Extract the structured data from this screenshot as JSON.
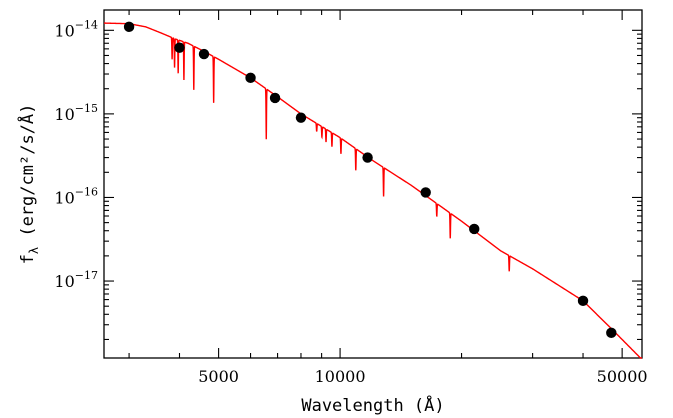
{
  "chart_data": {
    "type": "scatter",
    "title": "",
    "xlabel": "Wavelength (Å)",
    "ylabel": "f_λ (erg/cm²/s/Å)",
    "ylabel_parts": {
      "symbol": "f",
      "subscript": "λ",
      "units": " (erg/cm²/s/Å)"
    },
    "x_scale": "log",
    "y_scale": "log",
    "xlim": [
      2600,
      56000
    ],
    "ylim": [
      1.2e-18,
      1.75e-14
    ],
    "x_ticks": [
      {
        "value": 5000,
        "label": "5000"
      },
      {
        "value": 10000,
        "label": "10000"
      },
      {
        "value": 50000,
        "label": "50000"
      }
    ],
    "y_ticks": [
      {
        "value": 1e-14,
        "base": "10",
        "exp": "−14"
      },
      {
        "value": 1e-15,
        "base": "10",
        "exp": "−15"
      },
      {
        "value": 1e-16,
        "base": "10",
        "exp": "−16"
      },
      {
        "value": 1e-17,
        "base": "10",
        "exp": "−17"
      }
    ],
    "series": [
      {
        "kind": "photometry",
        "color": "#000000",
        "points": [
          {
            "x": 3000,
            "y": 1.1e-14
          },
          {
            "x": 4000,
            "y": 6.2e-15
          },
          {
            "x": 4600,
            "y": 5.2e-15
          },
          {
            "x": 6000,
            "y": 2.7e-15
          },
          {
            "x": 6900,
            "y": 1.55e-15
          },
          {
            "x": 8000,
            "y": 9e-16
          },
          {
            "x": 11700,
            "y": 3e-16
          },
          {
            "x": 16300,
            "y": 1.15e-16
          },
          {
            "x": 21500,
            "y": 4.2e-17
          },
          {
            "x": 40000,
            "y": 5.8e-18
          },
          {
            "x": 47000,
            "y": 2.4e-18
          }
        ]
      },
      {
        "kind": "model_spectrum",
        "color": "#ff0000",
        "continuum": [
          {
            "x": 2600,
            "y": 1.22e-14
          },
          {
            "x": 3000,
            "y": 1.2e-14
          },
          {
            "x": 3300,
            "y": 1.1e-14
          },
          {
            "x": 3600,
            "y": 9.3e-15
          },
          {
            "x": 3900,
            "y": 7.9e-15
          },
          {
            "x": 4200,
            "y": 7e-15
          },
          {
            "x": 4600,
            "y": 5.6e-15
          },
          {
            "x": 5000,
            "y": 4.5e-15
          },
          {
            "x": 6000,
            "y": 2.7e-15
          },
          {
            "x": 7000,
            "y": 1.6e-15
          },
          {
            "x": 8000,
            "y": 1e-15
          },
          {
            "x": 10000,
            "y": 5.2e-16
          },
          {
            "x": 12000,
            "y": 2.8e-16
          },
          {
            "x": 15000,
            "y": 1.4e-16
          },
          {
            "x": 20000,
            "y": 5.2e-17
          },
          {
            "x": 25000,
            "y": 2.3e-17
          },
          {
            "x": 30000,
            "y": 1.4e-17
          },
          {
            "x": 40000,
            "y": 5.8e-18
          },
          {
            "x": 47000,
            "y": 2.7e-18
          },
          {
            "x": 56000,
            "y": 1.15e-18
          }
        ],
        "absorption_lines": [
          {
            "x": 3835,
            "depth": 0.45
          },
          {
            "x": 3889,
            "depth": 0.55
          },
          {
            "x": 3970,
            "depth": 0.6
          },
          {
            "x": 4102,
            "depth": 0.65
          },
          {
            "x": 4340,
            "depth": 0.7
          },
          {
            "x": 4861,
            "depth": 0.72
          },
          {
            "x": 6563,
            "depth": 0.75
          },
          {
            "x": 8750,
            "depth": 0.2
          },
          {
            "x": 9015,
            "depth": 0.25
          },
          {
            "x": 9229,
            "depth": 0.3
          },
          {
            "x": 9546,
            "depth": 0.32
          },
          {
            "x": 10049,
            "depth": 0.35
          },
          {
            "x": 10938,
            "depth": 0.45
          },
          {
            "x": 12818,
            "depth": 0.55
          },
          {
            "x": 17362,
            "depth": 0.3
          },
          {
            "x": 18751,
            "depth": 0.5
          },
          {
            "x": 26252,
            "depth": 0.35
          }
        ]
      }
    ],
    "grid": false,
    "legend": "none"
  }
}
